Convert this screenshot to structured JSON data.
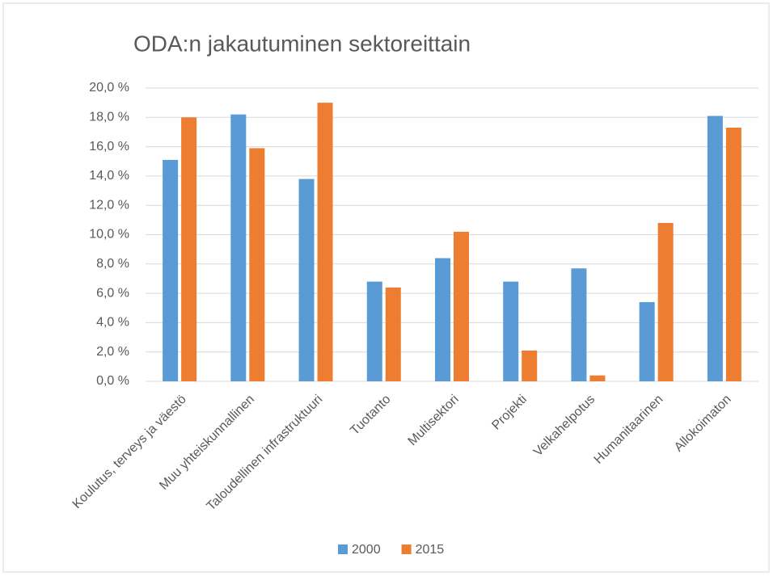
{
  "chart_data": {
    "type": "bar",
    "title": "ODA:n jakautuminen sektoreittain",
    "categories": [
      "Koulutus, terveys ja väestö",
      "Muu yhteiskunnallinen",
      "Taloudellinen infrastruktuuri",
      "Tuotanto",
      "Multisektori",
      "Projekti",
      "Velkahelpotus",
      "Humanitaarinen",
      "Allokoimaton"
    ],
    "series": [
      {
        "name": "2000",
        "color": "#5b9bd5",
        "values": [
          15.1,
          18.2,
          13.8,
          6.8,
          8.4,
          6.8,
          7.7,
          5.4,
          18.1
        ]
      },
      {
        "name": "2015",
        "color": "#ed7d31",
        "values": [
          18.0,
          15.9,
          19.0,
          6.4,
          10.2,
          2.1,
          0.4,
          10.8,
          17.3
        ]
      }
    ],
    "ylim": [
      0,
      20
    ],
    "yticks": [
      {
        "value": 0,
        "label": "0,0 %"
      },
      {
        "value": 2,
        "label": "2,0 %"
      },
      {
        "value": 4,
        "label": "4,0 %"
      },
      {
        "value": 6,
        "label": "6,0 %"
      },
      {
        "value": 8,
        "label": "8,0 %"
      },
      {
        "value": 10,
        "label": "10,0 %"
      },
      {
        "value": 12,
        "label": "12,0 %"
      },
      {
        "value": 14,
        "label": "14,0 %"
      },
      {
        "value": 16,
        "label": "16,0 %"
      },
      {
        "value": 18,
        "label": "18,0 %"
      },
      {
        "value": 20,
        "label": "20,0 %"
      }
    ],
    "grid": true,
    "legend": "bottom"
  }
}
